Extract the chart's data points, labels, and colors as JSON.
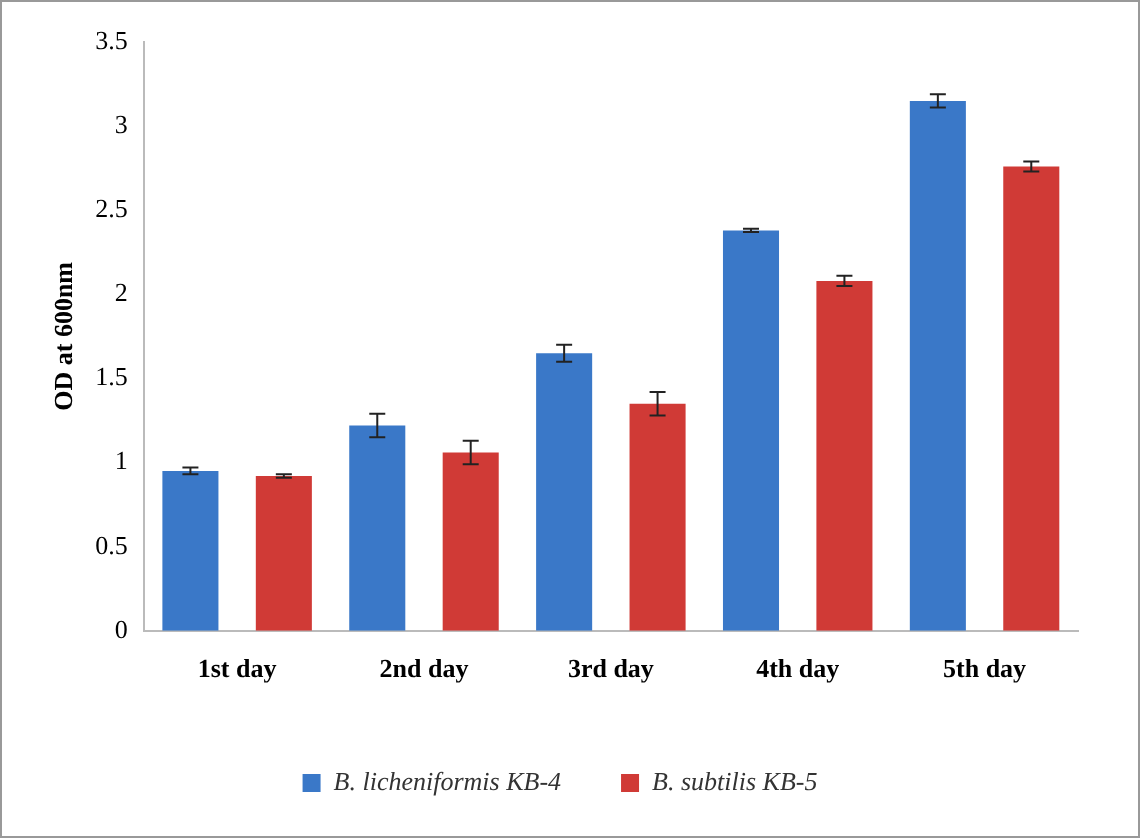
{
  "chart_data": {
    "type": "bar",
    "ylabel": "OD at 600nm",
    "categories": [
      "1st day",
      "2nd day",
      "3rd day",
      "4th day",
      "5th day"
    ],
    "series": [
      {
        "name": "B. licheniformis KB-4",
        "color": "#3a78c8",
        "values": [
          0.95,
          1.22,
          1.65,
          2.38,
          3.15
        ],
        "errors": [
          0.02,
          0.07,
          0.05,
          0.01,
          0.04
        ]
      },
      {
        "name": "B. subtilis KB-5",
        "color": "#d03a36",
        "values": [
          0.92,
          1.06,
          1.35,
          2.08,
          2.76
        ],
        "errors": [
          0.01,
          0.07,
          0.07,
          0.03,
          0.03
        ]
      }
    ],
    "ylim": [
      0,
      3.5
    ],
    "yticks": [
      0,
      0.5,
      1,
      1.5,
      2,
      2.5,
      3,
      3.5
    ],
    "grid": false,
    "legend": "bottom"
  }
}
